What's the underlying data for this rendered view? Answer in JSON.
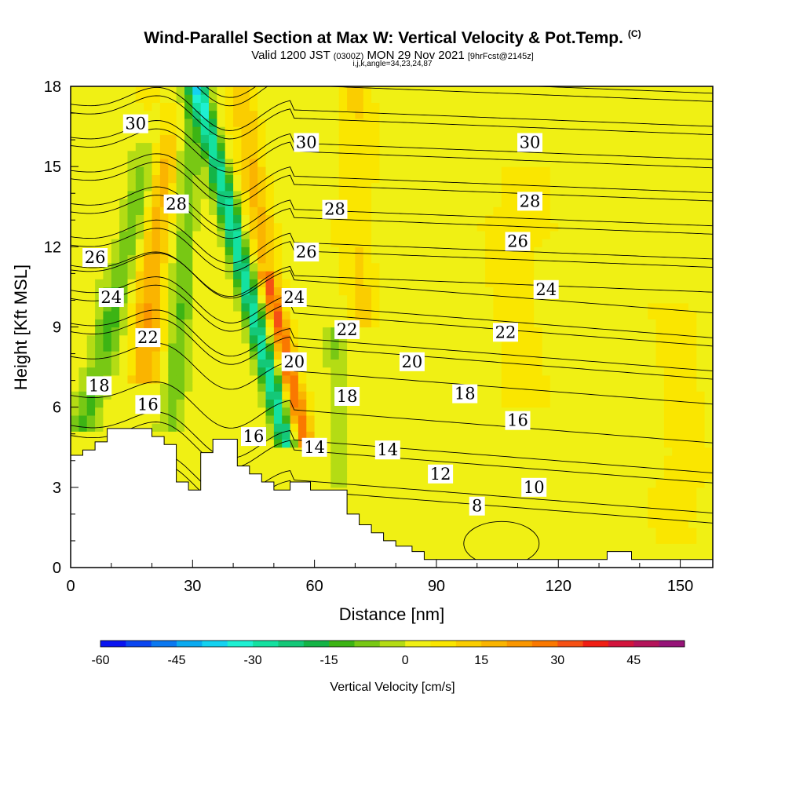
{
  "title": "Wind-Parallel Section at Max W: Vertical Velocity & Pot.Temp.",
  "copyright_mark": "(C)",
  "subtitle_main": "Valid 1200 JST",
  "subtitle_z": "(0300Z)",
  "subtitle_date": "MON 29 Nov 2021",
  "subtitle_fcst": "[9hrFcst@2145z]",
  "subtitle_indices": "i,j,k,angle=34,23,24,87",
  "chart_data": {
    "type": "heatmap",
    "xlabel": "Distance [nm]",
    "ylabel": "Height [Kft MSL]",
    "xlim": [
      0,
      158
    ],
    "ylim": [
      0,
      18
    ],
    "x_ticks": [
      "0",
      "30",
      "60",
      "90",
      "120",
      "150"
    ],
    "y_ticks": [
      "0",
      "3",
      "6",
      "9",
      "12",
      "15",
      "18"
    ],
    "x_tick_values": [
      0,
      30,
      60,
      90,
      120,
      150
    ],
    "y_tick_values": [
      0,
      3,
      6,
      9,
      12,
      15,
      18
    ],
    "colorbar": {
      "title": "Vertical Velocity [cm/s]",
      "tick_labels": [
        "-60",
        "-45",
        "-30",
        "-15",
        "0",
        "15",
        "30",
        "45"
      ],
      "tick_values": [
        -60,
        -45,
        -30,
        -15,
        0,
        15,
        30,
        45
      ],
      "min": -60,
      "max": 55,
      "step": 5,
      "colors": [
        "#0a14f0",
        "#0a46f0",
        "#0a78f0",
        "#0aaaf0",
        "#14d2f0",
        "#1ef0d2",
        "#14e1a0",
        "#14c878",
        "#14b446",
        "#3cb414",
        "#78c814",
        "#b4dc14",
        "#f0f014",
        "#fae600",
        "#facd00",
        "#fab400",
        "#fa9600",
        "#fa7800",
        "#f55014",
        "#f01e14",
        "#d2143c",
        "#b4145a",
        "#961478"
      ],
      "min_color": "#0a14f0",
      "max_color": "#5a148c"
    },
    "contour_levels_potential_temperature": [
      8,
      10,
      12,
      14,
      16,
      18,
      20,
      22,
      24,
      26,
      28,
      30
    ],
    "contour_labels": [
      {
        "text": "30",
        "x": 16,
        "y": 16.6
      },
      {
        "text": "30",
        "x": 58,
        "y": 15.9
      },
      {
        "text": "30",
        "x": 113,
        "y": 15.9
      },
      {
        "text": "28",
        "x": 26,
        "y": 13.6
      },
      {
        "text": "28",
        "x": 65,
        "y": 13.4
      },
      {
        "text": "28",
        "x": 113,
        "y": 13.7
      },
      {
        "text": "26",
        "x": 6,
        "y": 11.6
      },
      {
        "text": "26",
        "x": 58,
        "y": 11.8
      },
      {
        "text": "26",
        "x": 110,
        "y": 12.2
      },
      {
        "text": "24",
        "x": 10,
        "y": 10.1
      },
      {
        "text": "24",
        "x": 55,
        "y": 10.1
      },
      {
        "text": "24",
        "x": 117,
        "y": 10.4
      },
      {
        "text": "22",
        "x": 19,
        "y": 8.6
      },
      {
        "text": "22",
        "x": 68,
        "y": 8.9
      },
      {
        "text": "22",
        "x": 107,
        "y": 8.8
      },
      {
        "text": "20",
        "x": 55,
        "y": 7.7
      },
      {
        "text": "20",
        "x": 84,
        "y": 7.7
      },
      {
        "text": "18",
        "x": 7,
        "y": 6.8
      },
      {
        "text": "18",
        "x": 68,
        "y": 6.4
      },
      {
        "text": "18",
        "x": 97,
        "y": 6.5
      },
      {
        "text": "16",
        "x": 19,
        "y": 6.1
      },
      {
        "text": "16",
        "x": 45,
        "y": 4.9
      },
      {
        "text": "16",
        "x": 110,
        "y": 5.5
      },
      {
        "text": "14",
        "x": 60,
        "y": 4.5
      },
      {
        "text": "14",
        "x": 78,
        "y": 4.4
      },
      {
        "text": "12",
        "x": 91,
        "y": 3.5
      },
      {
        "text": "10",
        "x": 114,
        "y": 3.0
      },
      {
        "text": "8",
        "x": 100,
        "y": 2.3
      }
    ],
    "terrain_kft": [
      [
        0,
        4.2
      ],
      [
        3,
        4.2
      ],
      [
        3,
        4.4
      ],
      [
        6,
        4.4
      ],
      [
        6,
        4.7
      ],
      [
        9,
        4.7
      ],
      [
        9,
        5.2
      ],
      [
        20,
        5.2
      ],
      [
        20,
        4.9
      ],
      [
        23,
        4.9
      ],
      [
        23,
        4.6
      ],
      [
        26,
        4.6
      ],
      [
        26,
        3.2
      ],
      [
        29,
        3.2
      ],
      [
        29,
        2.9
      ],
      [
        32,
        2.9
      ],
      [
        32,
        4.3
      ],
      [
        35,
        4.3
      ],
      [
        35,
        4.8
      ],
      [
        41,
        4.8
      ],
      [
        41,
        3.8
      ],
      [
        44,
        3.8
      ],
      [
        44,
        3.5
      ],
      [
        47,
        3.5
      ],
      [
        47,
        3.2
      ],
      [
        50,
        3.2
      ],
      [
        50,
        2.9
      ],
      [
        54,
        2.9
      ],
      [
        54,
        3.2
      ],
      [
        59,
        3.2
      ],
      [
        59,
        2.9
      ],
      [
        62,
        2.9
      ],
      [
        62,
        2.9
      ],
      [
        68,
        2.9
      ],
      [
        68,
        2.0
      ],
      [
        71,
        2.0
      ],
      [
        71,
        1.6
      ],
      [
        74,
        1.6
      ],
      [
        74,
        1.3
      ],
      [
        77,
        1.3
      ],
      [
        77,
        1.0
      ],
      [
        80,
        1.0
      ],
      [
        80,
        0.8
      ],
      [
        84,
        0.8
      ],
      [
        84,
        0.6
      ],
      [
        87,
        0.6
      ],
      [
        87,
        0.3
      ],
      [
        132,
        0.3
      ],
      [
        132,
        0.6
      ],
      [
        138,
        0.6
      ],
      [
        138,
        0.3
      ],
      [
        158,
        0.3
      ]
    ]
  }
}
